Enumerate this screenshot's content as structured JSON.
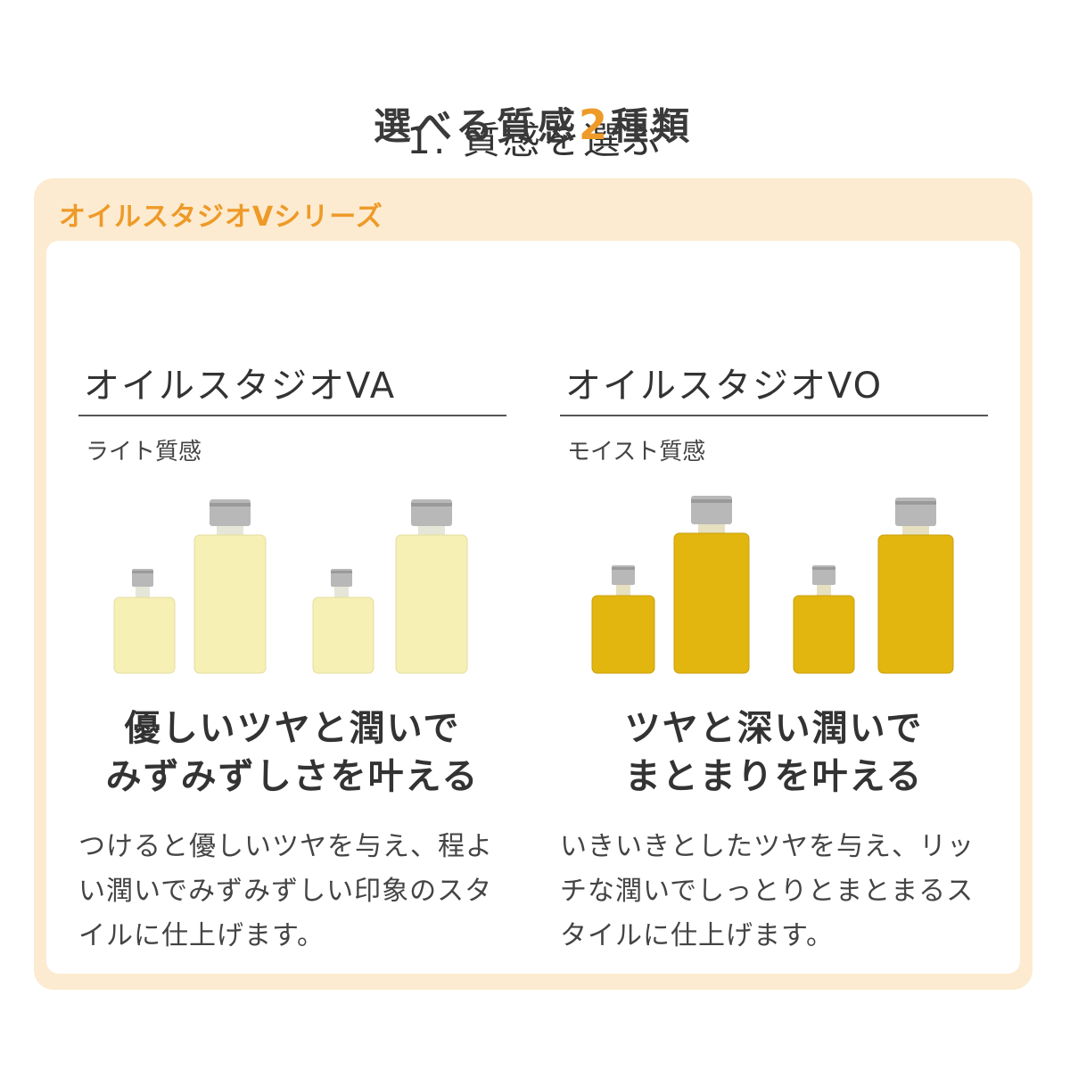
{
  "section_title": "1. 質感を選ぶ",
  "series_label": "オイルスタジオVシリーズ",
  "headline": {
    "prefix": "選べる質感",
    "number": "2",
    "suffix": "種類"
  },
  "products": [
    {
      "name": "オイルスタジオVA",
      "texture": "ライト質感",
      "catch_line1": "優しいツヤと潤いで",
      "catch_line2": "みずみずしさを叶える",
      "description": "つけると優しいツヤを与え、程よい潤いでみずみずしい印象のスタイルに仕上げます。",
      "liquid_color": "#f6f0b4"
    },
    {
      "name": "オイルスタジオVO",
      "texture": "モイスト質感",
      "catch_line1": "ツヤと深い潤いで",
      "catch_line2": "まとまりを叶える",
      "description": "いきいきとしたツヤを与え、リッチな潤いでしっとりとまとまるスタイルに仕上げます。",
      "liquid_color": "#e2b60e"
    }
  ],
  "colors": {
    "accent": "#ee9a28",
    "panel_bg": "#fcebd0"
  }
}
